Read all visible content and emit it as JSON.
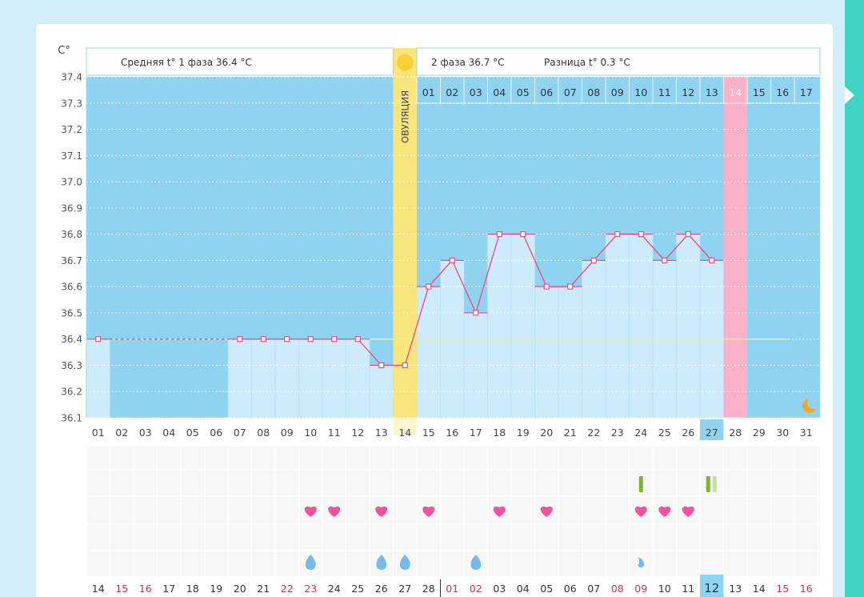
{
  "chart_data": {
    "type": "line",
    "unit_label": "C°",
    "header": {
      "phase1": "Средняя t° 1 фаза 36.4 °С",
      "phase2": "2 фаза 36.7 °С",
      "diff": "Разница t° 0.3 °С"
    },
    "ovulation_label": "ОВУЛЯЦИЯ",
    "ovulation_day_index": 13,
    "y_ticks": [
      "37.4",
      "37.3",
      "37.2",
      "37.1",
      "37.0",
      "36.9",
      "36.8",
      "36.7",
      "36.6",
      "36.5",
      "36.4",
      "36.3",
      "36.2",
      "36.1"
    ],
    "ylim": [
      36.1,
      37.4
    ],
    "average_line": 36.4,
    "day_labels": [
      "01",
      "02",
      "03",
      "04",
      "05",
      "06",
      "07",
      "08",
      "09",
      "10",
      "11",
      "12",
      "13",
      "14",
      "15",
      "16",
      "17",
      "18",
      "19",
      "20",
      "21",
      "22",
      "23",
      "24",
      "25",
      "26",
      "27",
      "28",
      "29",
      "30",
      "31"
    ],
    "phase2_day_labels": [
      "01",
      "02",
      "03",
      "04",
      "05",
      "06",
      "07",
      "08",
      "09",
      "10",
      "11",
      "12",
      "13",
      "14",
      "15",
      "16",
      "17"
    ],
    "phase2_highlight_index": 13,
    "temps": [
      36.4,
      null,
      null,
      null,
      null,
      null,
      36.4,
      36.4,
      36.4,
      36.4,
      36.4,
      36.4,
      36.3,
      36.3,
      36.6,
      36.7,
      36.5,
      36.8,
      36.8,
      36.6,
      36.6,
      36.7,
      36.8,
      36.8,
      36.7,
      36.8,
      36.7,
      null,
      null,
      null,
      null
    ],
    "dashed_segment_index": 0,
    "today_index": 26,
    "highlight_column_index": 27,
    "moon_icon": "crescent-moon-icon",
    "sun_icon": "sun-icon",
    "date_labels": [
      {
        "text": "14",
        "red": false
      },
      {
        "text": "15",
        "red": true
      },
      {
        "text": "16",
        "red": true
      },
      {
        "text": "17",
        "red": false
      },
      {
        "text": "18",
        "red": false
      },
      {
        "text": "19",
        "red": false
      },
      {
        "text": "20",
        "red": false
      },
      {
        "text": "21",
        "red": false
      },
      {
        "text": "22",
        "red": true
      },
      {
        "text": "23",
        "red": true
      },
      {
        "text": "24",
        "red": false
      },
      {
        "text": "25",
        "red": false
      },
      {
        "text": "26",
        "red": false
      },
      {
        "text": "27",
        "red": false
      },
      {
        "text": "28",
        "red": false
      },
      {
        "text": "01",
        "red": true
      },
      {
        "text": "02",
        "red": true
      },
      {
        "text": "03",
        "red": false
      },
      {
        "text": "04",
        "red": false
      },
      {
        "text": "05",
        "red": false
      },
      {
        "text": "06",
        "red": false
      },
      {
        "text": "07",
        "red": false
      },
      {
        "text": "08",
        "red": true
      },
      {
        "text": "09",
        "red": true
      },
      {
        "text": "10",
        "red": false
      },
      {
        "text": "11",
        "red": false
      },
      {
        "text": "12",
        "red": false
      },
      {
        "text": "13",
        "red": false
      },
      {
        "text": "14",
        "red": false
      },
      {
        "text": "15",
        "red": true
      },
      {
        "text": "16",
        "red": true
      }
    ],
    "test_marks": [
      {
        "day_index": 23,
        "type": "single"
      },
      {
        "day_index": 26,
        "type": "double"
      }
    ],
    "heart_days": [
      9,
      10,
      12,
      14,
      17,
      19,
      23,
      24,
      25
    ],
    "drop_days": [
      9,
      12,
      13,
      16
    ],
    "small_drop_days": [
      23
    ],
    "colors": {
      "plot_blue": "#8fd3f1",
      "bar_light": "#cdebfa",
      "grid_dots": "#ffffff",
      "temp_line": "#ec4f88",
      "ovulation": "#f8e57c",
      "sun": "#f9d038",
      "period": "#f9b1c8",
      "average_line": "#e7ef9a",
      "moon": "#f2a72d",
      "heart": "#f0549a",
      "drop": "#76b9ea",
      "test_dark": "#7db32e",
      "test_light": "#c9e39a",
      "red_text": "#e8244a",
      "highlight_cell": "#8fd3f1"
    }
  }
}
